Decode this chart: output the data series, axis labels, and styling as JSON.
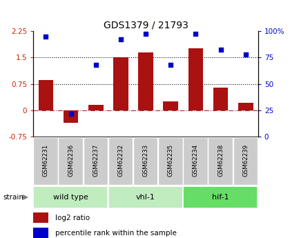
{
  "title": "GDS1379 / 21793",
  "samples": [
    "GSM62231",
    "GSM62236",
    "GSM62237",
    "GSM62232",
    "GSM62233",
    "GSM62235",
    "GSM62234",
    "GSM62238",
    "GSM62239"
  ],
  "log2_ratio": [
    0.85,
    -0.35,
    0.15,
    1.5,
    1.65,
    0.25,
    1.75,
    0.65,
    0.22
  ],
  "percentile": [
    95,
    22,
    68,
    92,
    97,
    68,
    97,
    82,
    78
  ],
  "groups": [
    {
      "label": "wild type",
      "indices": [
        0,
        1,
        2
      ],
      "color": "#c0ecc0"
    },
    {
      "label": "vhl-1",
      "indices": [
        3,
        4,
        5
      ],
      "color": "#c0ecc0"
    },
    {
      "label": "hif-1",
      "indices": [
        6,
        7,
        8
      ],
      "color": "#66dd66"
    }
  ],
  "ylim_left": [
    -0.75,
    2.25
  ],
  "ylim_right": [
    0,
    100
  ],
  "yticks_left": [
    -0.75,
    0,
    0.75,
    1.5,
    2.25
  ],
  "yticks_right": [
    0,
    25,
    50,
    75,
    100
  ],
  "ytick_labels_left": [
    "-0.75",
    "0",
    "0.75",
    "1.5",
    "2.25"
  ],
  "ytick_labels_right": [
    "0",
    "25",
    "50",
    "75",
    "100%"
  ],
  "hlines": [
    0.75,
    1.5
  ],
  "bar_color": "#aa1111",
  "dot_color": "#0000cc",
  "zero_line_color": "#993333",
  "bg_color": "#ffffff",
  "legend_items": [
    {
      "label": "log2 ratio",
      "color": "#aa1111"
    },
    {
      "label": "percentile rank within the sample",
      "color": "#0000cc"
    }
  ],
  "strain_label": "strain",
  "bar_width": 0.6
}
